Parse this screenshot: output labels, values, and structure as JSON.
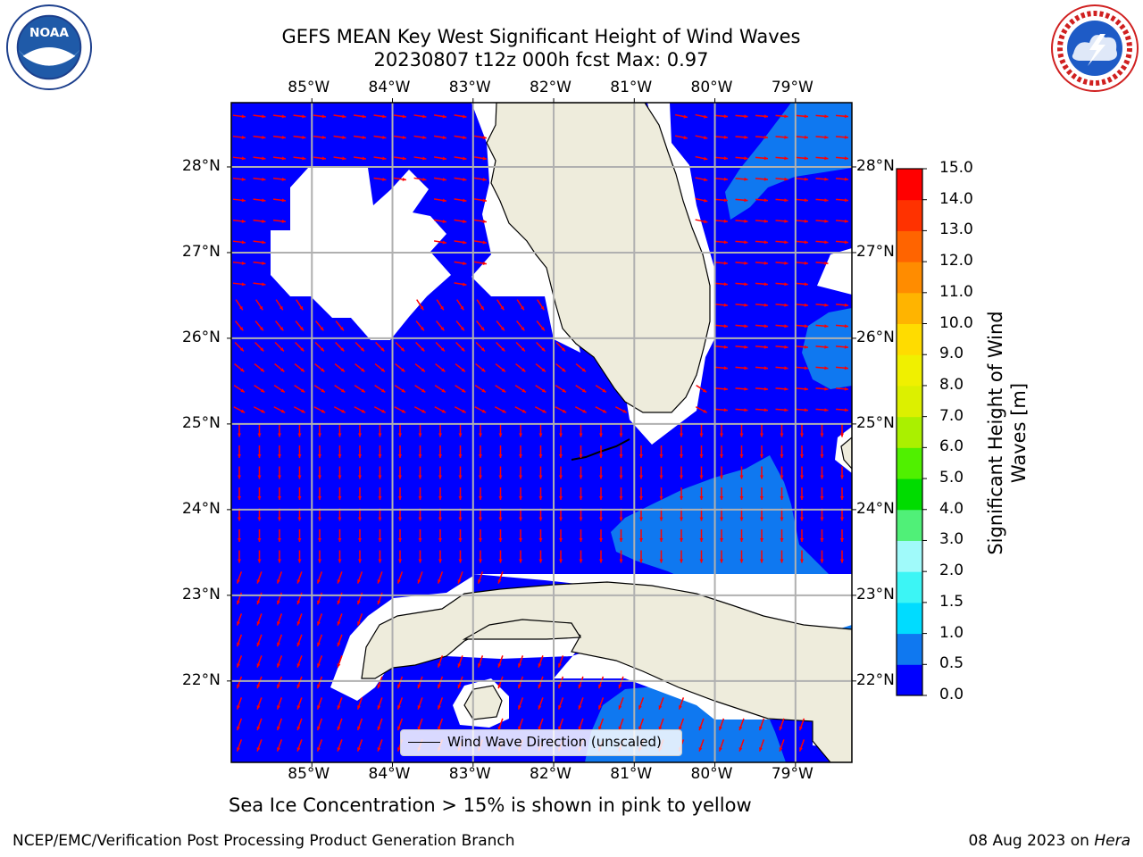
{
  "header": {
    "title_line1": "GEFS MEAN Key West Significant Height of Wind Waves",
    "title_line2": "20230807 t12z 000h fcst   Max: 0.97"
  },
  "logos": {
    "left": "noaa-logo",
    "right": "national-weather-service-logo"
  },
  "map": {
    "region": "Key West",
    "lon_labels": [
      "85°W",
      "84°W",
      "83°W",
      "82°W",
      "81°W",
      "80°W",
      "79°W"
    ],
    "lat_labels": [
      "28°N",
      "27°N",
      "26°N",
      "25°N",
      "24°N",
      "23°N",
      "22°N"
    ],
    "lon_values": [
      -85,
      -84,
      -83,
      -82,
      -81,
      -80,
      -79
    ],
    "lat_values": [
      28,
      27,
      26,
      25,
      24,
      23,
      22
    ],
    "lon_range": [
      -86.0,
      -78.3
    ],
    "lat_range": [
      21.05,
      28.75
    ],
    "ocean_color": "#0000ff",
    "land_color": "#eeecdc",
    "arrow_color": "#ff0000",
    "grid_color": "#b0b0b0",
    "legend_label": "Wind Wave Direction (unscaled)"
  },
  "colorbar": {
    "label": "Significant Height of Wind Waves [m]",
    "label_line1": "Significant Height of Wind",
    "label_line2": "Waves [m]",
    "ticks": [
      "0.0",
      "0.5",
      "1.0",
      "1.5",
      "2.0",
      "3.0",
      "4.0",
      "5.0",
      "6.0",
      "7.0",
      "8.0",
      "9.0",
      "10.0",
      "11.0",
      "12.0",
      "13.0",
      "14.0",
      "15.0"
    ],
    "colors": [
      "#0000ff",
      "#0f78f0",
      "#00dcff",
      "#3cf5f5",
      "#a0fafa",
      "#50f078",
      "#00dc00",
      "#50f000",
      "#aaf000",
      "#dcf000",
      "#f0f000",
      "#ffdc00",
      "#ffb400",
      "#ff8c00",
      "#ff6400",
      "#ff3200",
      "#ff0000"
    ]
  },
  "note": "Sea Ice Concentration > 15% is shown in pink to yellow",
  "footer": {
    "left": "NCEP/EMC/Verification Post Processing Product Generation Branch",
    "right_date": "08 Aug 2023 on ",
    "right_host": "Hera"
  }
}
